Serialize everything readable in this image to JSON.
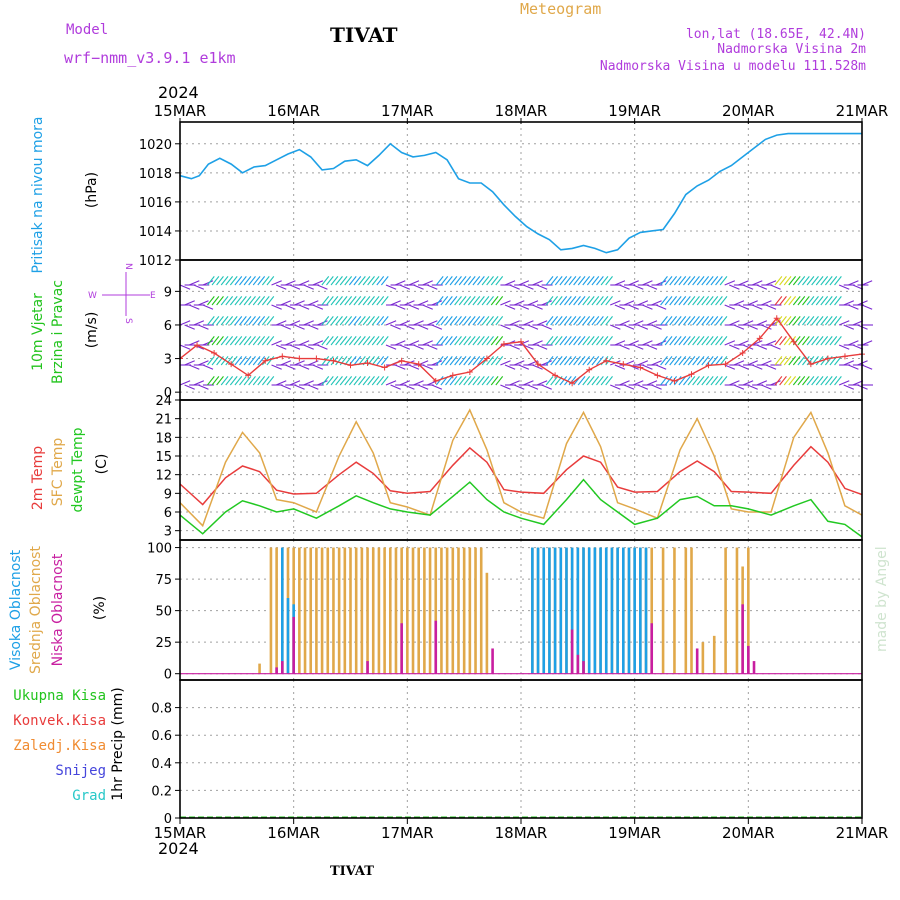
{
  "header": {
    "model_label": "Model",
    "model_name": "wrf−nmm_v3.9.1 e1km",
    "station": "TIVAT",
    "meteogram_label": "Meteogram",
    "location_line": "lon,lat (18.65E, 42.4N)",
    "elevation_line": "Nadmorska Visina 2m",
    "model_elevation_line": "Nadmorska Visina u modelu 111.528m",
    "year": "2024",
    "footer_station": "TIVAT",
    "credit": "made by Angel"
  },
  "colors": {
    "pressure": "#1ea0e6",
    "wind_label": "#23c41e",
    "wind_dir": "#b03cdc",
    "temp2m": "#e83c3c",
    "sfc": "#e0a84a",
    "dewpt": "#22c822",
    "high_cloud": "#1ea0e6",
    "mid_cloud": "#e0a84a",
    "low_cloud": "#c81ea0",
    "total_precip": "#23c41e",
    "conv_precip": "#e83c3c",
    "frozen_precip": "#f08c32",
    "snow": "#4646dc",
    "hail": "#28c8c8"
  },
  "chart_data": [
    {
      "type": "line",
      "panel": "pressure",
      "ylabel_lines": [
        "Pritisak na nivou mora",
        "(hPa)"
      ],
      "x_ticks": [
        "15MAR",
        "16MAR",
        "17MAR",
        "18MAR",
        "19MAR",
        "20MAR",
        "21MAR"
      ],
      "ylim": [
        1012,
        1021.5
      ],
      "y_ticks": [
        1012,
        1014,
        1016,
        1018,
        1020
      ],
      "grid": true,
      "series": [
        {
          "x": [
            0,
            0.1,
            0.17,
            0.25,
            0.35,
            0.45,
            0.55,
            0.65,
            0.75,
            0.85,
            0.95,
            1.05,
            1.15,
            1.25,
            1.35,
            1.45,
            1.55,
            1.65,
            1.75,
            1.85,
            1.95,
            2.05,
            2.15,
            2.25,
            2.35,
            2.45,
            2.55,
            2.65,
            2.75,
            2.85,
            2.95,
            3.05,
            3.15,
            3.25,
            3.35,
            3.45,
            3.55,
            3.65,
            3.75,
            3.85,
            3.95,
            4.05,
            4.15,
            4.25,
            4.35,
            4.45,
            4.55,
            4.65,
            4.75,
            4.85,
            4.95,
            5.05,
            5.15,
            5.25,
            5.35,
            5.45,
            5.55,
            5.65,
            5.75,
            5.85,
            5.95,
            6.0
          ],
          "values": [
            1017.8,
            1017.6,
            1017.8,
            1018.6,
            1019.0,
            1018.6,
            1018.0,
            1018.4,
            1018.5,
            1018.9,
            1019.3,
            1019.6,
            1019.1,
            1018.2,
            1018.3,
            1018.8,
            1018.9,
            1018.5,
            1019.2,
            1020.0,
            1019.4,
            1019.1,
            1019.2,
            1019.4,
            1018.9,
            1017.6,
            1017.3,
            1017.3,
            1016.7,
            1015.8,
            1015.0,
            1014.3,
            1013.8,
            1013.4,
            1012.7,
            1012.8,
            1013.0,
            1012.8,
            1012.5,
            1012.7,
            1013.5,
            1013.9,
            1014.0,
            1014.1,
            1015.2,
            1016.5,
            1017.1,
            1017.5,
            1018.1,
            1018.5,
            1019.1,
            1019.7,
            1020.3,
            1020.6,
            1020.7,
            1020.7,
            1020.7,
            1020.7,
            1020.7,
            1020.7,
            1020.7,
            1020.7
          ]
        }
      ]
    },
    {
      "type": "line",
      "panel": "wind",
      "ylabel_lines": [
        "10m Vjetar",
        "Brzina i Pravac",
        "(m/s)"
      ],
      "direction_key": [
        "N",
        "W",
        "E",
        "S"
      ],
      "ylim": [
        -0.7,
        11.8
      ],
      "y_ticks": [
        0,
        3,
        6,
        9
      ],
      "grid": true,
      "series": [
        {
          "x": [
            0,
            0.15,
            0.3,
            0.45,
            0.6,
            0.75,
            0.9,
            1.05,
            1.2,
            1.35,
            1.5,
            1.65,
            1.8,
            1.95,
            2.1,
            2.25,
            2.4,
            2.55,
            2.7,
            2.85,
            3.0,
            3.15,
            3.3,
            3.45,
            3.6,
            3.75,
            3.9,
            4.05,
            4.2,
            4.35,
            4.5,
            4.65,
            4.8,
            4.95,
            5.1,
            5.25,
            5.4,
            5.55,
            5.7,
            5.85,
            6.0
          ],
          "values": [
            3.0,
            4.2,
            3.5,
            2.5,
            1.5,
            2.8,
            3.2,
            3.0,
            3.0,
            2.8,
            2.4,
            2.6,
            2.2,
            2.8,
            2.5,
            1.0,
            1.5,
            1.8,
            3.0,
            4.3,
            4.5,
            2.5,
            1.5,
            0.8,
            2.0,
            2.8,
            2.5,
            2.2,
            1.5,
            1.0,
            1.6,
            2.4,
            2.5,
            3.5,
            4.8,
            6.6,
            4.5,
            2.5,
            3.0,
            3.2,
            3.4
          ]
        }
      ]
    },
    {
      "type": "line",
      "panel": "temperature",
      "ylabel_lines": [
        "2m Temp",
        "SFC Temp",
        "dewpt Temp",
        "(C)"
      ],
      "ylim": [
        1.5,
        24
      ],
      "y_ticks": [
        3,
        6,
        9,
        12,
        15,
        18,
        21,
        24
      ],
      "grid": true,
      "series": [
        {
          "key": "temp2m",
          "x": [
            0,
            0.2,
            0.4,
            0.55,
            0.7,
            0.85,
            1.0,
            1.2,
            1.4,
            1.55,
            1.7,
            1.85,
            2.0,
            2.2,
            2.4,
            2.55,
            2.7,
            2.85,
            3.0,
            3.2,
            3.4,
            3.55,
            3.7,
            3.85,
            4.0,
            4.2,
            4.4,
            4.55,
            4.7,
            4.85,
            5.0,
            5.2,
            5.4,
            5.55,
            5.7,
            5.85,
            6.0
          ],
          "values": [
            10.5,
            7.2,
            11.5,
            13.4,
            12.5,
            9.5,
            8.9,
            9.0,
            12.0,
            14.0,
            12.2,
            9.4,
            9.0,
            9.3,
            13.5,
            16.3,
            14.0,
            9.6,
            9.2,
            9.0,
            12.8,
            15.0,
            14.0,
            10.0,
            9.2,
            9.3,
            12.5,
            14.2,
            12.5,
            9.3,
            9.2,
            9.0,
            13.5,
            16.5,
            14.0,
            9.8,
            8.8
          ]
        },
        {
          "key": "sfc",
          "x": [
            0,
            0.2,
            0.4,
            0.55,
            0.7,
            0.85,
            1.0,
            1.2,
            1.4,
            1.55,
            1.7,
            1.85,
            2.0,
            2.2,
            2.4,
            2.55,
            2.7,
            2.85,
            3.0,
            3.2,
            3.4,
            3.55,
            3.7,
            3.85,
            4.0,
            4.2,
            4.4,
            4.55,
            4.7,
            4.85,
            5.0,
            5.2,
            5.4,
            5.55,
            5.7,
            5.85,
            6.0
          ],
          "values": [
            7.5,
            3.8,
            14.0,
            18.8,
            15.5,
            8.0,
            7.5,
            6.0,
            15.0,
            20.5,
            15.5,
            7.5,
            6.8,
            5.5,
            17.5,
            22.4,
            16.0,
            7.5,
            6.0,
            5.0,
            17.0,
            22.0,
            16.5,
            7.5,
            6.5,
            5.0,
            16.0,
            21.0,
            15.0,
            6.5,
            6.0,
            6.0,
            18.0,
            22.0,
            15.5,
            7.0,
            5.5
          ]
        },
        {
          "key": "dewpt",
          "x": [
            0,
            0.2,
            0.4,
            0.55,
            0.7,
            0.85,
            1.0,
            1.2,
            1.4,
            1.55,
            1.7,
            1.85,
            2.0,
            2.2,
            2.4,
            2.55,
            2.7,
            2.85,
            3.0,
            3.2,
            3.4,
            3.55,
            3.7,
            3.85,
            4.0,
            4.2,
            4.4,
            4.55,
            4.7,
            4.85,
            5.0,
            5.2,
            5.4,
            5.55,
            5.7,
            5.85,
            6.0
          ],
          "values": [
            5.5,
            2.5,
            6.0,
            7.8,
            7.0,
            6.0,
            6.5,
            5.0,
            7.0,
            8.6,
            7.5,
            6.5,
            6.0,
            5.5,
            8.5,
            10.8,
            8.0,
            6.0,
            5.0,
            4.0,
            8.0,
            11.2,
            8.0,
            6.0,
            4.0,
            5.0,
            8.0,
            8.5,
            7.0,
            7.0,
            6.5,
            5.5,
            7.0,
            8.0,
            4.5,
            4.0,
            2.0
          ]
        }
      ]
    },
    {
      "type": "bar",
      "panel": "clouds",
      "ylabel_lines": [
        "Visoka Oblacnost",
        "Srednja Oblacnost",
        "Niska Oblacnost",
        "(%)"
      ],
      "ylim": [
        -5,
        106
      ],
      "y_ticks": [
        0,
        25,
        50,
        75,
        100
      ],
      "grid": true,
      "series": [
        {
          "key": "high_cloud",
          "x": [
            0.9,
            0.95,
            1.0,
            3.1,
            3.15,
            3.2,
            3.25,
            3.3,
            3.35,
            3.4,
            3.45,
            3.5,
            3.55,
            3.6,
            3.65,
            3.7,
            3.75,
            3.8,
            3.85,
            3.9,
            3.95,
            4.0,
            4.05,
            4.1
          ],
          "values": [
            100,
            60,
            55,
            100,
            100,
            100,
            100,
            100,
            100,
            100,
            100,
            100,
            100,
            100,
            100,
            100,
            100,
            100,
            100,
            100,
            100,
            100,
            100,
            100
          ]
        },
        {
          "key": "mid_cloud",
          "x": [
            0.7,
            0.8,
            0.85,
            0.9,
            0.95,
            1.0,
            1.05,
            1.1,
            1.15,
            1.2,
            1.25,
            1.3,
            1.35,
            1.4,
            1.45,
            1.5,
            1.55,
            1.6,
            1.65,
            1.7,
            1.75,
            1.8,
            1.85,
            1.9,
            1.95,
            2.0,
            2.05,
            2.1,
            2.15,
            2.2,
            2.25,
            2.3,
            2.35,
            2.4,
            2.45,
            2.5,
            2.55,
            2.6,
            2.65,
            2.7,
            3.1,
            3.15,
            3.2,
            3.25,
            3.3,
            3.35,
            3.4,
            3.45,
            3.5,
            3.55,
            3.6,
            3.65,
            3.7,
            3.75,
            3.8,
            3.85,
            3.9,
            3.95,
            4.0,
            4.05,
            4.1,
            4.15,
            4.25,
            4.35,
            4.45,
            4.5,
            4.6,
            4.7,
            4.8,
            4.9,
            4.95,
            5.0
          ],
          "values": [
            8,
            100,
            100,
            100,
            100,
            100,
            100,
            100,
            100,
            100,
            100,
            100,
            100,
            100,
            100,
            100,
            100,
            100,
            100,
            100,
            100,
            100,
            100,
            100,
            100,
            100,
            100,
            100,
            100,
            100,
            100,
            100,
            100,
            100,
            100,
            100,
            100,
            100,
            100,
            80,
            100,
            100,
            100,
            100,
            100,
            100,
            100,
            100,
            100,
            100,
            100,
            100,
            100,
            100,
            100,
            100,
            100,
            100,
            100,
            100,
            100,
            100,
            100,
            100,
            100,
            100,
            25,
            30,
            100,
            100,
            85,
            100
          ]
        },
        {
          "key": "low_cloud",
          "x": [
            0.85,
            0.9,
            1.0,
            1.65,
            1.95,
            2.25,
            2.75,
            3.45,
            3.5,
            3.55,
            4.15,
            4.55,
            4.95,
            5.0,
            5.05
          ],
          "values": [
            5,
            10,
            45,
            10,
            40,
            42,
            20,
            35,
            15,
            10,
            40,
            20,
            55,
            22,
            10
          ]
        }
      ]
    },
    {
      "type": "bar",
      "panel": "precipitation",
      "ylabel_lines": [
        "1hr Precip (mm)"
      ],
      "legend_left": [
        "Ukupna Kisa",
        "Konvek.Kisa",
        "Zaledj.Kisa",
        "Snijeg",
        "Grad"
      ],
      "ylim": [
        0,
        1.0
      ],
      "y_ticks": [
        0,
        0.2,
        0.4,
        0.6,
        0.8
      ],
      "grid": true,
      "series": []
    }
  ]
}
